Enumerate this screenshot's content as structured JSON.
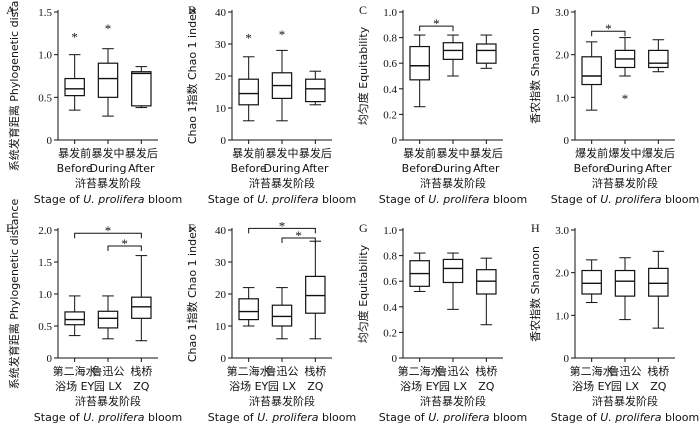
{
  "chart_data": [
    {
      "id": "A",
      "panel_label": "A",
      "type": "box",
      "ylabel": "系统发育距离 Phylogenetic distance",
      "ylim": [
        0,
        1.5
      ],
      "yticks": [
        "0",
        "0.5",
        "1.0",
        "1.5"
      ],
      "categories": [
        "暴发前\nBefore",
        "暴发中\nDuring",
        "暴发后\nAfter"
      ],
      "xlabel": "浒苔暴发阶段\nStage of U. prolifera bloom",
      "boxes": [
        {
          "whisker_low": 0.35,
          "q1": 0.52,
          "median": 0.6,
          "q3": 0.72,
          "whisker_high": 1.0,
          "outliers": [
            1.25
          ]
        },
        {
          "whisker_low": 0.28,
          "q1": 0.5,
          "median": 0.72,
          "q3": 0.9,
          "whisker_high": 1.07,
          "outliers": [
            1.35
          ]
        },
        {
          "whisker_low": 0.38,
          "q1": 0.4,
          "median": 0.78,
          "q3": 0.8,
          "whisker_high": 0.86,
          "outliers": []
        }
      ],
      "significance": []
    },
    {
      "id": "B",
      "panel_label": "B",
      "type": "box",
      "ylabel": "Chao 1指数 Chao 1 index",
      "ylim": [
        0,
        40
      ],
      "yticks": [
        "0",
        "10",
        "20",
        "30",
        "40"
      ],
      "categories": [
        "暴发前\nBefore",
        "暴发中\nDuring",
        "暴发后\nAfter"
      ],
      "xlabel": "浒苔暴发阶段\nStage of U. prolifera bloom",
      "boxes": [
        {
          "whisker_low": 6,
          "q1": 11,
          "median": 14.5,
          "q3": 19,
          "whisker_high": 26,
          "outliers": [
            33
          ]
        },
        {
          "whisker_low": 6,
          "q1": 13,
          "median": 17,
          "q3": 21,
          "whisker_high": 28,
          "outliers": [
            34
          ]
        },
        {
          "whisker_low": 11,
          "q1": 12,
          "median": 16,
          "q3": 19,
          "whisker_high": 21.5,
          "outliers": []
        }
      ],
      "significance": []
    },
    {
      "id": "C",
      "panel_label": "C",
      "type": "box",
      "ylabel": "均匀度 Equitability",
      "ylim": [
        0,
        1.0
      ],
      "yticks": [
        "0",
        "0.2",
        "0.4",
        "0.6",
        "0.8",
        "1.0"
      ],
      "categories": [
        "暴发前\nBefore",
        "暴发中\nDuring",
        "暴发后\nAfter"
      ],
      "xlabel": "浒苔暴发阶段\nStage of U. prolifera bloom",
      "boxes": [
        {
          "whisker_low": 0.26,
          "q1": 0.47,
          "median": 0.58,
          "q3": 0.73,
          "whisker_high": 0.82,
          "outliers": []
        },
        {
          "whisker_low": 0.5,
          "q1": 0.63,
          "median": 0.7,
          "q3": 0.76,
          "whisker_high": 0.82,
          "outliers": []
        },
        {
          "whisker_low": 0.56,
          "q1": 0.6,
          "median": 0.7,
          "q3": 0.75,
          "whisker_high": 0.82,
          "outliers": []
        }
      ],
      "significance": [
        {
          "from": 0,
          "to": 1,
          "level": 0.89,
          "mark": "*"
        }
      ]
    },
    {
      "id": "D",
      "panel_label": "D",
      "type": "box",
      "ylabel": "香农指数 Shannon",
      "ylim": [
        0,
        3.0
      ],
      "yticks": [
        "0",
        "1.0",
        "2.0",
        "3.0"
      ],
      "categories": [
        "爆发前\nBefore",
        "爆发中\nDuring",
        "爆发后\nAfter"
      ],
      "xlabel": "浒苔暴发阶段\nStage of U. prolifera bloom",
      "boxes": [
        {
          "whisker_low": 0.7,
          "q1": 1.3,
          "median": 1.5,
          "q3": 1.95,
          "whisker_high": 2.3,
          "outliers": []
        },
        {
          "whisker_low": 1.5,
          "q1": 1.7,
          "median": 1.9,
          "q3": 2.1,
          "whisker_high": 2.4,
          "outliers": [
            1.05
          ]
        },
        {
          "whisker_low": 1.6,
          "q1": 1.7,
          "median": 1.8,
          "q3": 2.1,
          "whisker_high": 2.35,
          "outliers": []
        }
      ],
      "significance": [
        {
          "from": 0,
          "to": 1,
          "level": 2.55,
          "mark": "*"
        }
      ]
    },
    {
      "id": "E",
      "panel_label": "E",
      "type": "box",
      "ylabel": "系统发育距离 Phylogenetic distance",
      "ylim": [
        0,
        2.0
      ],
      "yticks": [
        "0",
        "0.5",
        "1.0",
        "1.5",
        "2.0"
      ],
      "categories": [
        "第二海水\n浴场 EY",
        "鲁迅公\n园 LX",
        "栈桥\nZQ"
      ],
      "xlabel": "浒苔暴发阶段\nStage of U. prolifera bloom",
      "boxes": [
        {
          "whisker_low": 0.35,
          "q1": 0.52,
          "median": 0.6,
          "q3": 0.72,
          "whisker_high": 0.97,
          "outliers": []
        },
        {
          "whisker_low": 0.3,
          "q1": 0.47,
          "median": 0.62,
          "q3": 0.73,
          "whisker_high": 0.97,
          "outliers": []
        },
        {
          "whisker_low": 0.27,
          "q1": 0.62,
          "median": 0.8,
          "q3": 0.95,
          "whisker_high": 1.6,
          "outliers": []
        }
      ],
      "significance": [
        {
          "from": 0,
          "to": 2,
          "level": 1.95,
          "mark": "*"
        },
        {
          "from": 1,
          "to": 2,
          "level": 1.75,
          "mark": "*"
        }
      ]
    },
    {
      "id": "F",
      "panel_label": "F",
      "type": "box",
      "ylabel": "Chao 1指数 Chao 1 index",
      "ylim": [
        0,
        40
      ],
      "yticks": [
        "0",
        "10",
        "20",
        "30",
        "40"
      ],
      "categories": [
        "第二海水\n浴场 EY",
        "鲁迅公\n园 LX",
        "栈桥\nZQ"
      ],
      "xlabel": "浒苔暴发阶段\nStage of U. prolifera bloom",
      "boxes": [
        {
          "whisker_low": 10,
          "q1": 12,
          "median": 14.5,
          "q3": 18.5,
          "whisker_high": 22,
          "outliers": []
        },
        {
          "whisker_low": 6,
          "q1": 10,
          "median": 13,
          "q3": 16.5,
          "whisker_high": 22,
          "outliers": []
        },
        {
          "whisker_low": 6,
          "q1": 14,
          "median": 19.5,
          "q3": 25.5,
          "whisker_high": 36.5,
          "outliers": []
        }
      ],
      "significance": [
        {
          "from": 0,
          "to": 2,
          "level": 40.5,
          "mark": "*"
        },
        {
          "from": 1,
          "to": 2,
          "level": 37.5,
          "mark": "*"
        }
      ]
    },
    {
      "id": "G",
      "panel_label": "G",
      "type": "box",
      "ylabel": "均匀度 Equitability",
      "ylim": [
        0,
        1.0
      ],
      "yticks": [
        "0",
        "0.2",
        "0.4",
        "0.6",
        "0.8",
        "1.0"
      ],
      "categories": [
        "第二海水\n浴场 EY",
        "鲁迅公\n园 LX",
        "栈桥\nZQ"
      ],
      "xlabel": "浒苔暴发阶段\nStage of U. prolifera bloom",
      "boxes": [
        {
          "whisker_low": 0.52,
          "q1": 0.56,
          "median": 0.66,
          "q3": 0.76,
          "whisker_high": 0.82,
          "outliers": []
        },
        {
          "whisker_low": 0.38,
          "q1": 0.59,
          "median": 0.7,
          "q3": 0.77,
          "whisker_high": 0.82,
          "outliers": []
        },
        {
          "whisker_low": 0.26,
          "q1": 0.5,
          "median": 0.6,
          "q3": 0.69,
          "whisker_high": 0.78,
          "outliers": []
        }
      ],
      "significance": []
    },
    {
      "id": "H",
      "panel_label": "H",
      "type": "box",
      "ylabel": "香农指数 Shannon",
      "ylim": [
        0,
        3.0
      ],
      "yticks": [
        "0",
        "1.0",
        "2.0",
        "3.0"
      ],
      "categories": [
        "第二海水\n浴场 EY",
        "鲁迅公\n园 LX",
        "栈桥\nZQ"
      ],
      "xlabel": "浒苔暴发阶段\nStage of U. prolifera bloom",
      "boxes": [
        {
          "whisker_low": 1.3,
          "q1": 1.5,
          "median": 1.75,
          "q3": 2.05,
          "whisker_high": 2.3,
          "outliers": []
        },
        {
          "whisker_low": 0.9,
          "q1": 1.45,
          "median": 1.8,
          "q3": 2.05,
          "whisker_high": 2.35,
          "outliers": []
        },
        {
          "whisker_low": 0.7,
          "q1": 1.45,
          "median": 1.75,
          "q3": 2.1,
          "whisker_high": 2.5,
          "outliers": []
        }
      ],
      "significance": []
    }
  ]
}
